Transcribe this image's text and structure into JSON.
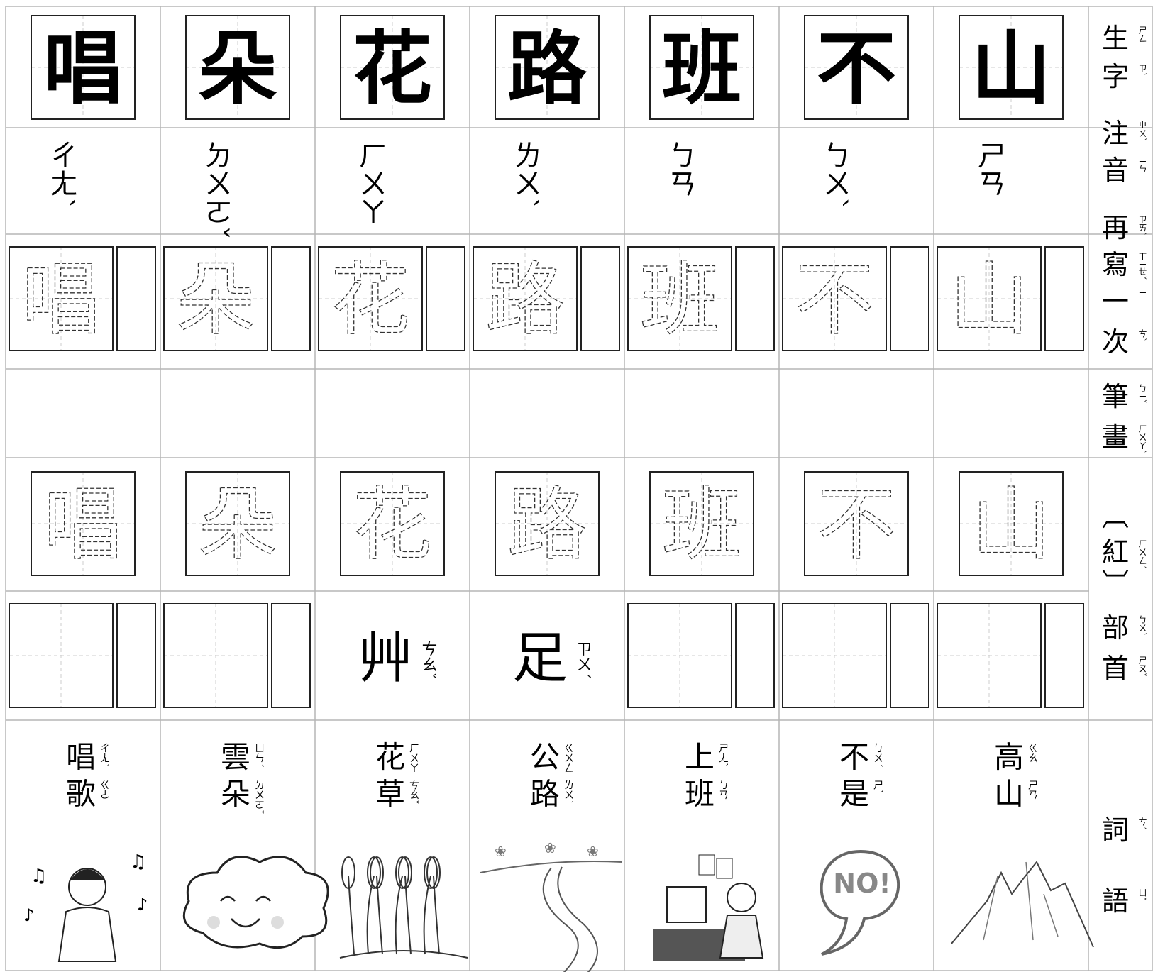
{
  "columns": [
    {
      "char": "唱",
      "zhuyin": "ㄔㄤˋ",
      "word": [
        {
          "char": "唱",
          "zhuyin": "ㄔㄤˋ"
        },
        {
          "char": "歌",
          "zhuyin": "ㄍㄜ"
        }
      ]
    },
    {
      "char": "朵",
      "zhuyin": "ㄉㄨㄛˇ",
      "word": [
        {
          "char": "雲",
          "zhuyin": "ㄩㄣˊ"
        },
        {
          "char": "朵",
          "zhuyin": "ㄉㄨㄛˇ"
        }
      ]
    },
    {
      "char": "花",
      "zhuyin": "ㄏㄨㄚ",
      "radical": {
        "char": "艸",
        "zhuyin": "ㄘㄠˇ"
      },
      "word": [
        {
          "char": "花",
          "zhuyin": "ㄏㄨㄚ"
        },
        {
          "char": "草",
          "zhuyin": "ㄘㄠˇ"
        }
      ]
    },
    {
      "char": "路",
      "zhuyin": "ㄌㄨˋ",
      "radical": {
        "char": "足",
        "zhuyin": "ㄗㄨˊ"
      },
      "word": [
        {
          "char": "公",
          "zhuyin": "ㄍㄨㄥ"
        },
        {
          "char": "路",
          "zhuyin": "ㄌㄨˋ"
        }
      ]
    },
    {
      "char": "班",
      "zhuyin": "ㄅㄢ",
      "word": [
        {
          "char": "上",
          "zhuyin": "ㄕㄤˋ"
        },
        {
          "char": "班",
          "zhuyin": "ㄅㄢ"
        }
      ]
    },
    {
      "char": "不",
      "zhuyin": "ㄅㄨˋ",
      "word": [
        {
          "char": "不",
          "zhuyin": "ㄅㄨˊ"
        },
        {
          "char": "是",
          "zhuyin": "ㄕˋ"
        }
      ]
    },
    {
      "char": "山",
      "zhuyin": "ㄕㄢ",
      "word": [
        {
          "char": "高",
          "zhuyin": "ㄍㄠ"
        },
        {
          "char": "山",
          "zhuyin": "ㄕㄢ"
        }
      ]
    }
  ],
  "row_labels": [
    {
      "chars": [
        {
          "char": "生",
          "zhuyin": "ㄕㄥ"
        },
        {
          "char": "字",
          "zhuyin": "ㄗˋ"
        }
      ]
    },
    {
      "chars": [
        {
          "char": "注",
          "zhuyin": "ㄓㄨˋ"
        },
        {
          "char": "音",
          "zhuyin": "ㄧㄣ"
        }
      ]
    },
    {
      "chars": [
        {
          "char": "再",
          "zhuyin": "ㄗㄞˋ"
        },
        {
          "char": "寫",
          "zhuyin": "ㄒㄧㄝˇ"
        },
        {
          "char": "一",
          "zhuyin": "ㄧ"
        },
        {
          "char": "次",
          "zhuyin": "ㄘˋ"
        }
      ]
    },
    {
      "chars": [
        {
          "char": "筆",
          "zhuyin": "ㄅㄧˇ"
        },
        {
          "char": "畫",
          "zhuyin": "ㄏㄨㄚˋ"
        }
      ]
    },
    {
      "chars": [
        {
          "char": "︹"
        },
        {
          "char": "紅",
          "zhuyin": "ㄏㄨㄥˊ"
        },
        {
          "char": "︺"
        },
        {
          "char": "部",
          "zhuyin": "ㄅㄨˋ"
        },
        {
          "char": "首",
          "zhuyin": "ㄕㄡˇ"
        }
      ]
    },
    {
      "chars": [
        {
          "char": "詞",
          "zhuyin": "ㄘˊ"
        },
        {
          "char": "語",
          "zhuyin": "ㄩˇ"
        }
      ]
    }
  ]
}
